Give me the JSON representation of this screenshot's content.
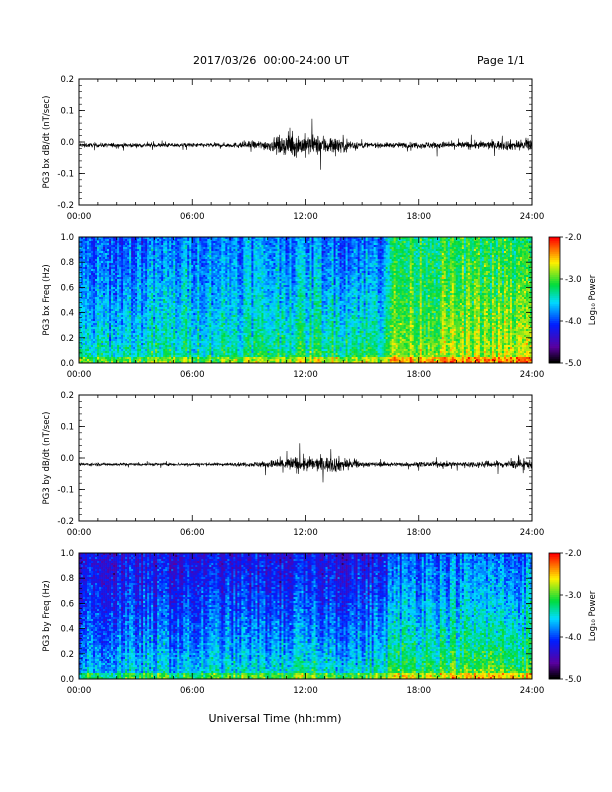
{
  "header": {
    "title": "2017/03/26  00:00-24:00 UT",
    "page": "Page 1/1"
  },
  "xlabel": "Universal Time (hh:mm)",
  "colorbar": {
    "label": "Log₁₀ Power",
    "range": [
      -5.0,
      -2.0
    ],
    "ticks": [
      "-2.0",
      "-3.0",
      "-4.0",
      "-5.0"
    ]
  },
  "chart_data": [
    {
      "type": "line",
      "ylabel": "PG3 bx dB/dt (nT/sec)",
      "xlim": [
        0,
        24
      ],
      "ylim": [
        -0.2,
        0.2
      ],
      "xticks": [
        "00:00",
        "06:00",
        "12:00",
        "18:00",
        "24:00"
      ],
      "yticks": [
        "0.2",
        "0.1",
        "0.0",
        "-0.1",
        "-0.2"
      ],
      "baseline": -0.01,
      "envelope": {
        "hours": [
          0,
          2,
          4,
          6,
          8,
          9,
          10,
          10.5,
          11,
          11.5,
          12,
          12.5,
          13,
          13.5,
          14,
          14.5,
          15,
          15.5,
          16,
          17,
          18,
          19,
          20,
          21,
          22,
          23,
          24
        ],
        "amplitude": [
          0.012,
          0.012,
          0.012,
          0.012,
          0.013,
          0.02,
          0.03,
          0.045,
          0.06,
          0.065,
          0.06,
          0.055,
          0.055,
          0.05,
          0.045,
          0.03,
          0.018,
          0.014,
          0.014,
          0.015,
          0.018,
          0.02,
          0.02,
          0.022,
          0.025,
          0.03,
          0.032
        ]
      }
    },
    {
      "type": "heatmap",
      "ylabel": "PG3 bx Freq (Hz)",
      "xlim": [
        0,
        24
      ],
      "ylim": [
        0.0,
        1.0
      ],
      "xticks": [
        "00:00",
        "06:00",
        "12:00",
        "18:00",
        "24:00"
      ],
      "yticks": [
        "1.0",
        "0.8",
        "0.6",
        "0.4",
        "0.2",
        "0.0"
      ],
      "zlim": [
        -5.0,
        -2.0
      ],
      "mean_log_power": {
        "hours": [
          0,
          2,
          4,
          6,
          8,
          10,
          12,
          14,
          16,
          16.5,
          18,
          20,
          22,
          24
        ],
        "at_1hz": [
          -4.0,
          -4.0,
          -3.9,
          -3.8,
          -3.8,
          -3.8,
          -3.8,
          -3.9,
          -3.9,
          -3.3,
          -3.2,
          -3.2,
          -3.2,
          -3.2
        ],
        "at_0hz": [
          -3.3,
          -3.3,
          -3.2,
          -3.2,
          -3.2,
          -3.1,
          -3.0,
          -3.0,
          -3.0,
          -2.8,
          -2.7,
          -2.7,
          -2.7,
          -2.6
        ]
      }
    },
    {
      "type": "line",
      "ylabel": "PG3 by dB/dt (nT/sec)",
      "xlim": [
        0,
        24
      ],
      "ylim": [
        -0.2,
        0.2
      ],
      "xticks": [
        "00:00",
        "06:00",
        "12:00",
        "18:00",
        "24:00"
      ],
      "yticks": [
        "0.2",
        "0.1",
        "0.0",
        "-0.1",
        "-0.2"
      ],
      "baseline": -0.02,
      "envelope": {
        "hours": [
          0,
          2,
          4,
          6,
          8,
          9,
          10,
          10.5,
          11,
          11.5,
          12,
          12.5,
          13,
          13.5,
          14,
          14.5,
          15,
          16,
          17,
          18,
          19,
          20,
          21,
          22,
          23,
          24
        ],
        "amplitude": [
          0.008,
          0.008,
          0.008,
          0.008,
          0.009,
          0.012,
          0.02,
          0.03,
          0.04,
          0.045,
          0.042,
          0.04,
          0.042,
          0.045,
          0.04,
          0.028,
          0.014,
          0.012,
          0.012,
          0.014,
          0.015,
          0.016,
          0.017,
          0.02,
          0.024,
          0.026
        ]
      }
    },
    {
      "type": "heatmap",
      "ylabel": "PG3 by Freq (Hz)",
      "xlim": [
        0,
        24
      ],
      "ylim": [
        0.0,
        1.0
      ],
      "xticks": [
        "00:00",
        "06:00",
        "12:00",
        "18:00",
        "24:00"
      ],
      "yticks": [
        "1.0",
        "0.8",
        "0.6",
        "0.4",
        "0.2",
        "0.0"
      ],
      "zlim": [
        -5.0,
        -2.0
      ],
      "mean_log_power": {
        "hours": [
          0,
          2,
          4,
          6,
          8,
          10,
          12,
          14,
          16,
          16.5,
          18,
          20,
          22,
          24
        ],
        "at_1hz": [
          -4.3,
          -4.3,
          -4.3,
          -4.3,
          -4.3,
          -4.3,
          -4.3,
          -4.3,
          -4.3,
          -4.0,
          -3.9,
          -3.9,
          -3.9,
          -3.9
        ],
        "at_0hz": [
          -3.5,
          -3.5,
          -3.4,
          -3.4,
          -3.3,
          -3.3,
          -3.2,
          -3.3,
          -3.2,
          -3.0,
          -2.9,
          -2.9,
          -2.8,
          -2.8
        ]
      }
    }
  ]
}
